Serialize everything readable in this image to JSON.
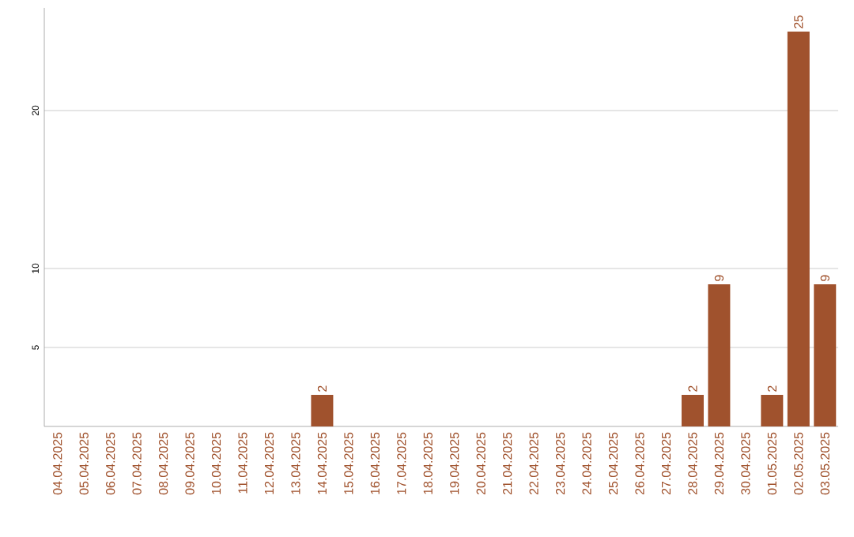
{
  "chart_data": {
    "type": "bar",
    "categories": [
      "04.04.2025",
      "05.04.2025",
      "06.04.2025",
      "07.04.2025",
      "08.04.2025",
      "09.04.2025",
      "10.04.2025",
      "11.04.2025",
      "12.04.2025",
      "13.04.2025",
      "14.04.2025",
      "15.04.2025",
      "16.04.2025",
      "17.04.2025",
      "18.04.2025",
      "19.04.2025",
      "20.04.2025",
      "21.04.2025",
      "22.04.2025",
      "23.04.2025",
      "24.04.2025",
      "25.04.2025",
      "26.04.2025",
      "27.04.2025",
      "28.04.2025",
      "29.04.2025",
      "30.04.2025",
      "01.05.2025",
      "02.05.2025",
      "03.05.2025"
    ],
    "values": [
      0,
      0,
      0,
      0,
      0,
      0,
      0,
      0,
      0,
      0,
      2,
      0,
      0,
      0,
      0,
      0,
      0,
      0,
      0,
      0,
      0,
      0,
      0,
      0,
      2,
      9,
      0,
      2,
      25,
      9
    ],
    "value_labels": [
      null,
      null,
      null,
      null,
      null,
      null,
      null,
      null,
      null,
      null,
      "2",
      null,
      null,
      null,
      null,
      null,
      null,
      null,
      null,
      null,
      null,
      null,
      null,
      null,
      "2",
      "9",
      null,
      "2",
      "25",
      "9"
    ],
    "color": "#a0522d",
    "ylim": [
      0,
      26.5
    ],
    "yticks": [
      5,
      10,
      20
    ],
    "grid": "y"
  }
}
